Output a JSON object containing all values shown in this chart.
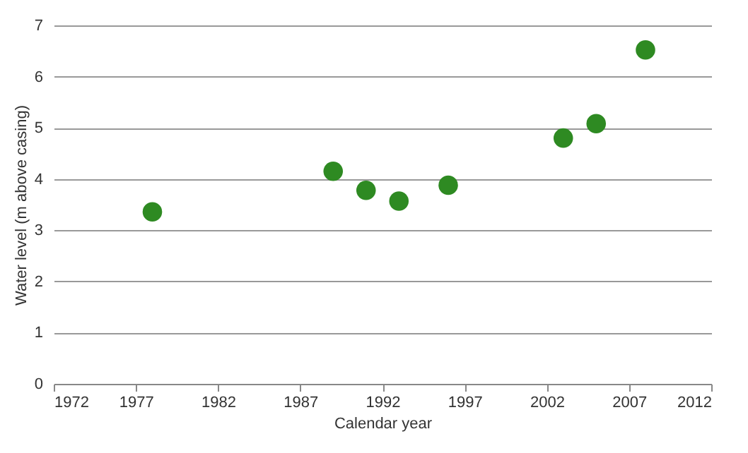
{
  "chart_data": {
    "type": "scatter",
    "xlabel": "Calendar year",
    "ylabel": "Water level  (m above casing)",
    "x": [
      1978,
      1989,
      1991,
      1993,
      1996,
      2003,
      2005,
      2008
    ],
    "series": [
      {
        "color": "#2e8a22",
        "values": [
          3.36,
          4.15,
          3.78,
          3.57,
          3.88,
          4.8,
          5.08,
          6.52
        ]
      }
    ],
    "xlim": [
      1972,
      2012
    ],
    "xticks": [
      1972,
      1977,
      1982,
      1987,
      1992,
      1997,
      2002,
      2007,
      2012
    ],
    "ylim": [
      0,
      7
    ],
    "yticks": [
      0,
      1,
      2,
      3,
      4,
      5,
      6,
      7
    ],
    "grid": "y",
    "marker": "circle"
  }
}
